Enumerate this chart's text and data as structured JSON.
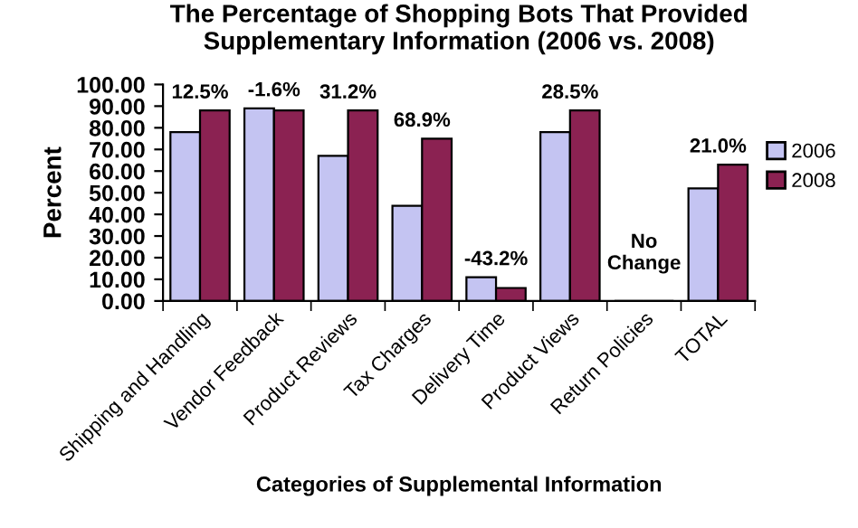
{
  "chart_data": {
    "type": "bar",
    "title": "The Percentage of Shopping Bots That Provided\nSupplementary Information (2006 vs. 2008)",
    "xlabel": "Categories of Supplemental Information",
    "ylabel": "Percent",
    "categories": [
      "Shipping and Handling",
      "Vendor Feedback",
      "Product Reviews",
      "Tax Charges",
      "Delivery Time",
      "Product Views",
      "Return Policies",
      "TOTAL"
    ],
    "series": [
      {
        "name": "2006",
        "color": "#c4c4f2",
        "values": [
          78,
          89,
          67,
          44,
          11,
          78,
          0,
          52
        ]
      },
      {
        "name": "2008",
        "color": "#8b2252",
        "values": [
          88,
          88,
          88,
          75,
          6,
          88,
          0,
          63
        ]
      }
    ],
    "ylim": [
      0,
      100
    ],
    "yticks": [
      {
        "value": 0,
        "label": "0.00"
      },
      {
        "value": 10,
        "label": "10.00"
      },
      {
        "value": 20,
        "label": "20.00"
      },
      {
        "value": 30,
        "label": "30.00"
      },
      {
        "value": 40,
        "label": "40.00"
      },
      {
        "value": 50,
        "label": "50.00"
      },
      {
        "value": 60,
        "label": "60.00"
      },
      {
        "value": 70,
        "label": "70.00"
      },
      {
        "value": 80,
        "label": "80.00"
      },
      {
        "value": 90,
        "label": "90.00"
      },
      {
        "value": 100,
        "label": "100.00"
      }
    ],
    "annotations": [
      "12.5%",
      "-1.6%",
      "31.2%",
      "68.9%",
      "-43.2%",
      "28.5%",
      "No\nChange",
      "21.0%"
    ],
    "grid": false,
    "legend": "right"
  }
}
